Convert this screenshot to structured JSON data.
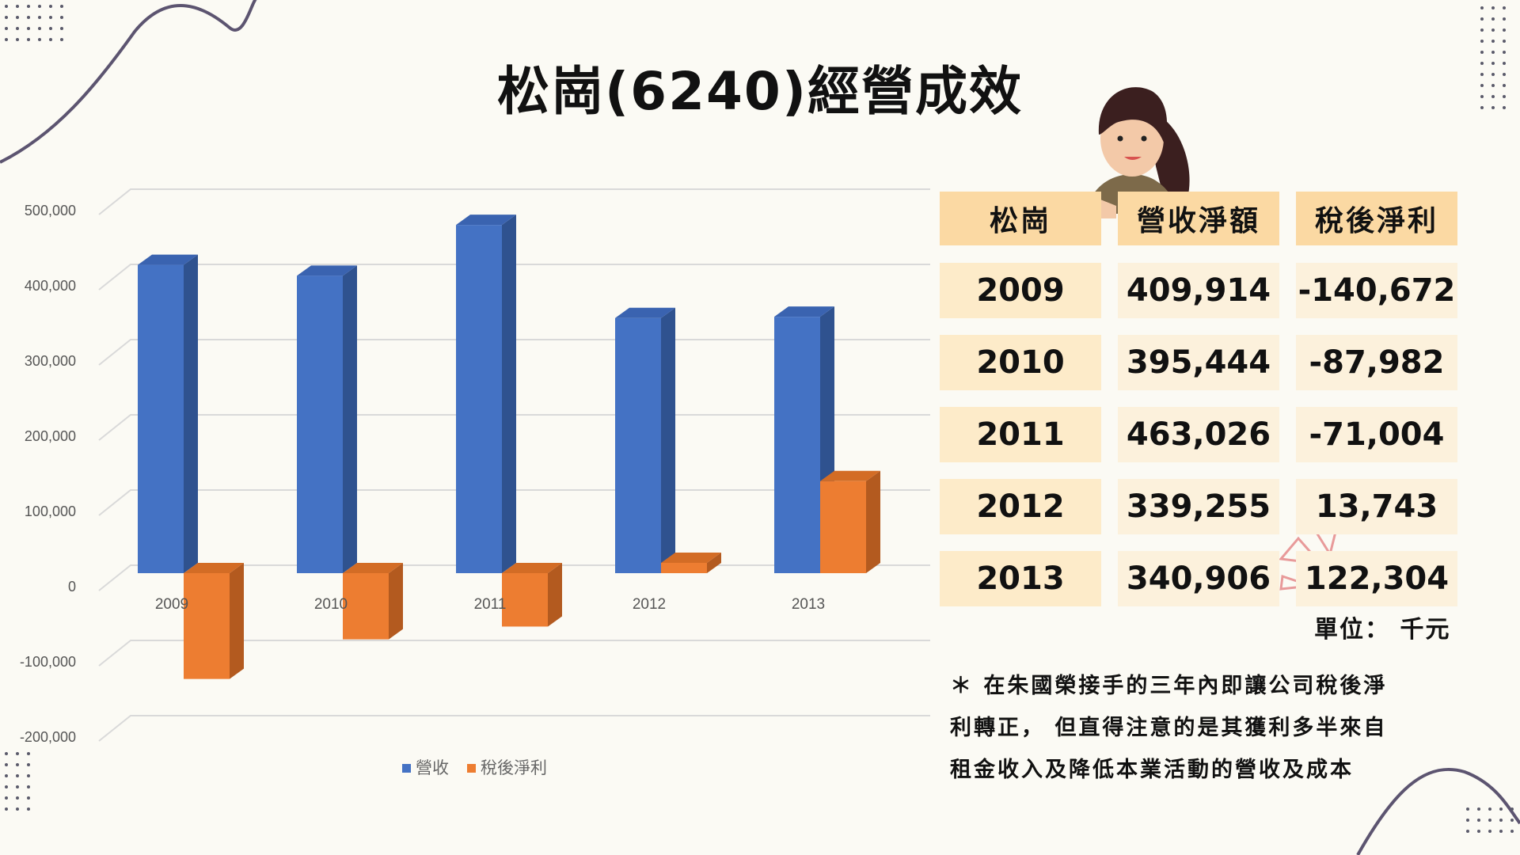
{
  "title": "松崗(6240)經營成效",
  "chart_data": {
    "type": "bar",
    "categories": [
      "2009",
      "2010",
      "2011",
      "2012",
      "2013"
    ],
    "series": [
      {
        "name": "營收",
        "values": [
          409914,
          395444,
          463026,
          339255,
          340906
        ],
        "color": "#4472c4"
      },
      {
        "name": "稅後淨利",
        "values": [
          -140672,
          -87982,
          -71004,
          13743,
          122304
        ],
        "color": "#ed7d31"
      }
    ],
    "ylim": [
      -200000,
      500000
    ],
    "yticks": [
      "500,000",
      "400,000",
      "300,000",
      "200,000",
      "100,000",
      "0",
      "-100,000",
      "-200,000"
    ],
    "ytick_values": [
      500000,
      400000,
      300000,
      200000,
      100000,
      0,
      -100000,
      -200000
    ],
    "legend_position": "bottom"
  },
  "table": {
    "headers": [
      "松崗",
      "營收淨額",
      "稅後淨利"
    ],
    "rows": [
      [
        "2009",
        "409,914",
        "-140,672"
      ],
      [
        "2010",
        "395,444",
        "-87,982"
      ],
      [
        "2011",
        "463,026",
        "-71,004"
      ],
      [
        "2012",
        "339,255",
        "13,743"
      ],
      [
        "2013",
        "340,906",
        "122,304"
      ]
    ]
  },
  "unit": "單位： 千元",
  "note": [
    "＊ 在朱國榮接手的三年內即讓公司稅後淨",
    "利轉正， 但直得注意的是其獲利多半來自",
    "租金收入及降低本業活動的營收及成本"
  ]
}
